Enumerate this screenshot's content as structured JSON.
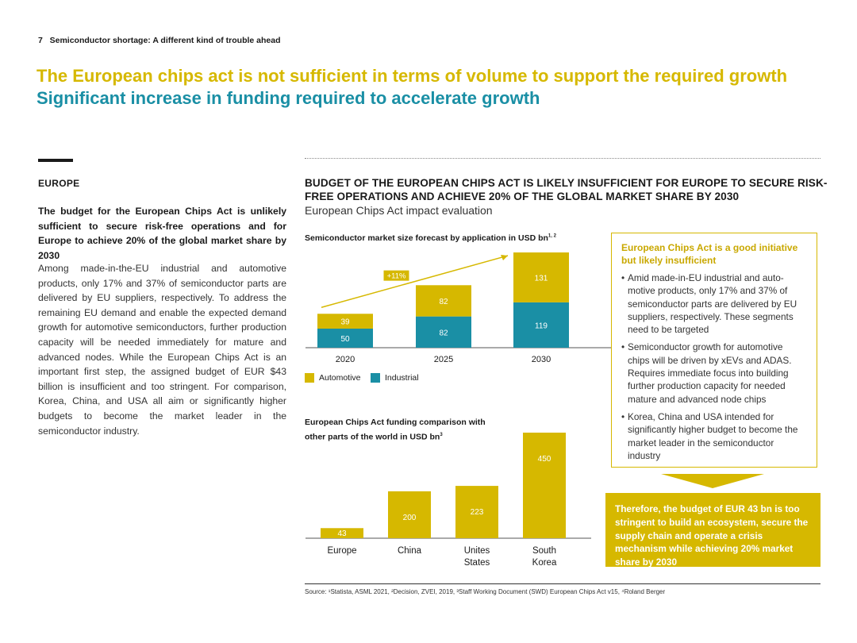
{
  "header": {
    "page_number": "7",
    "running_title": "Semiconductor shortage: A different kind of trouble ahead",
    "title_line1": "The European chips act is not sufficient in terms of volume to support the required growth",
    "title_line2": "Significant increase in funding required to accelerate growth"
  },
  "left": {
    "region": "EUROPE",
    "lead": "The budget for the European Chips Act is unlikely sufficient to secure risk-free operations and for Europe to achieve 20% of the global market share by 2030",
    "body": "Among made-in-the-EU industrial and automotive products, only 17% and 37% of semiconductor parts are delivered by EU suppliers, respectively. To address the remaining EU demand and enable the expected demand growth for automotive semiconductors, further production capacity will be needed immediately for mature and advanced nodes. While the European Chips Act is an important first step, the assigned budget of EUR $43 billion is insufficient and too stringent. For comparison, Korea, China, and USA all aim  or significantly higher budgets to become the market leader in the semiconductor industry."
  },
  "figure": {
    "heading": "BUDGET OF THE EUROPEAN CHIPS ACT IS LIKELY INSUFFICIENT FOR EUROPE TO SECURE RISK-FREE OPERATIONS AND ACHIEVE 20% OF THE GLOBAL MARKET SHARE BY 2030",
    "subheading": "European Chips Act impact evaluation"
  },
  "colors": {
    "automotive": "#d6b800",
    "industrial": "#1a8fa5",
    "accent_yellow": "#d6b800",
    "accent_teal": "#1a8fa5"
  },
  "chart_data": [
    {
      "type": "bar",
      "stacked": true,
      "title": "Semiconductor market size forecast by application in USD bn",
      "title_sup": "1, 2",
      "categories": [
        "2020",
        "2025",
        "2030"
      ],
      "series": [
        {
          "name": "Industrial",
          "values": [
            50,
            82,
            119
          ]
        },
        {
          "name": "Automotive",
          "values": [
            39,
            82,
            131
          ]
        }
      ],
      "annotation": "+11%",
      "legend_position": "bottom-left",
      "ylim": [
        0,
        260
      ]
    },
    {
      "type": "bar",
      "title": "European Chips Act funding comparison with other parts of the world in USD bn",
      "title_sup": "3",
      "categories": [
        "Europe",
        "China",
        "Unites States",
        "South Korea"
      ],
      "values": [
        43,
        200,
        223,
        450
      ],
      "ylim": [
        0,
        470
      ]
    }
  ],
  "callout": {
    "title": "European Chips Act is a good initiative but likely insufficient",
    "bullets": [
      "Amid made-in-EU industrial and auto-motive products, only 17% and 37% of semiconductor parts are delivered by EU suppliers, respectively. These segments need to be targeted",
      "Semiconductor growth for automotive chips will be driven by xEVs and ADAS. Requires immediate focus into building further production capacity for needed mature and advanced node chips",
      "Korea, China and USA intended for significantly higher budget to become the market leader in the semiconductor industry"
    ],
    "conclusion": "Therefore, the budget of EUR 43 bn is too stringent to build an ecosystem, secure the supply chain and operate a crisis mechanism while achieving 20% market share by 2030"
  },
  "source": "Source: ¹Statista, ASML 2021, ²Decision, ZVEI, 2019, ³Staff Working Document (SWD) European Chips Act v15, ⁴Roland Berger"
}
